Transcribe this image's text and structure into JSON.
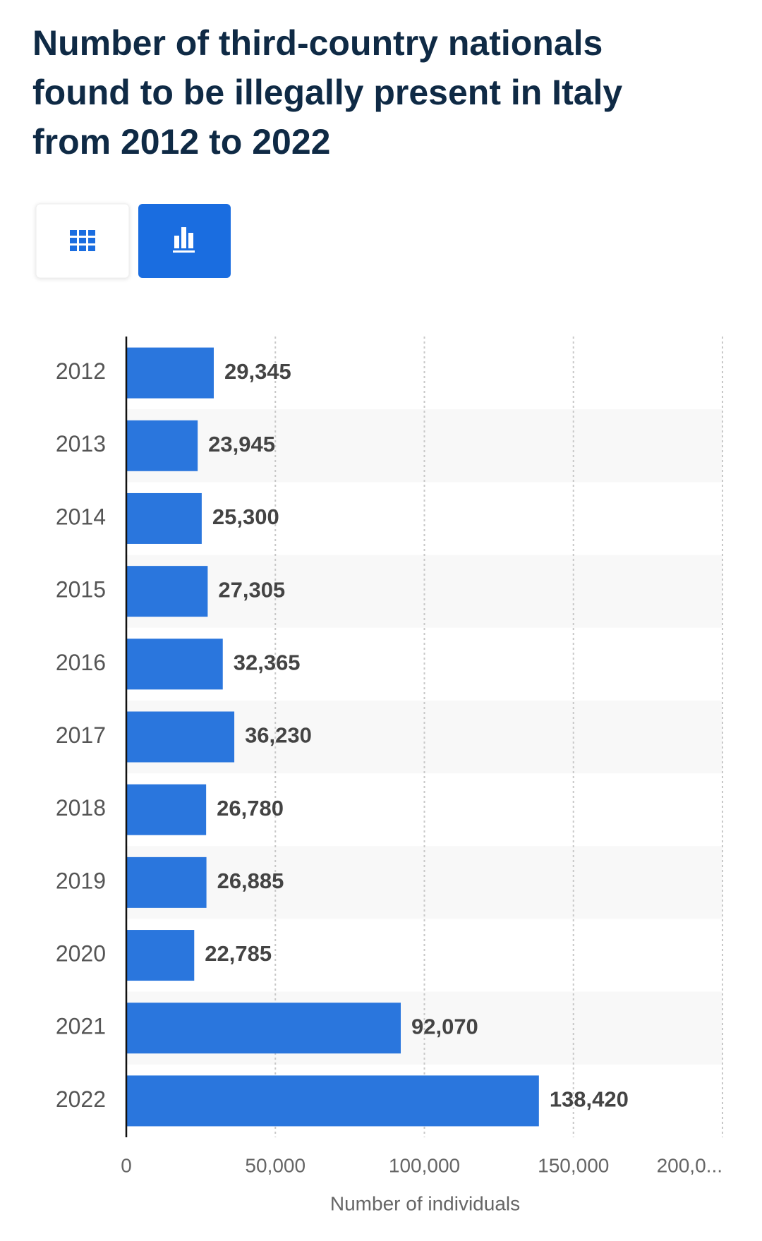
{
  "chart_data": {
    "type": "bar",
    "orientation": "horizontal",
    "title": [
      "Number of third-country nationals",
      "found to be illegally present in Italy",
      "from 2012 to 2022"
    ],
    "categories": [
      "2012",
      "2013",
      "2014",
      "2015",
      "2016",
      "2017",
      "2018",
      "2019",
      "2020",
      "2021",
      "2022"
    ],
    "values": [
      29345,
      23945,
      25300,
      27305,
      32365,
      36230,
      26780,
      26885,
      22785,
      92070,
      138420
    ],
    "value_labels": [
      "29,345",
      "23,945",
      "25,300",
      "27,305",
      "32,365",
      "36,230",
      "26,780",
      "26,885",
      "22,785",
      "92,070",
      "138,420"
    ],
    "color": "#2a76dd",
    "xlim": [
      0,
      200000
    ],
    "xticks": [
      0,
      {
        "value": 50000,
        "label": "50,000"
      },
      {
        "value": 100000,
        "label": "100,000"
      },
      {
        "value": 150000,
        "label": "150,000"
      },
      {
        "value": 200000,
        "label": "200,0..."
      }
    ],
    "xlabel": "Number of individuals",
    "grid": true
  }
}
